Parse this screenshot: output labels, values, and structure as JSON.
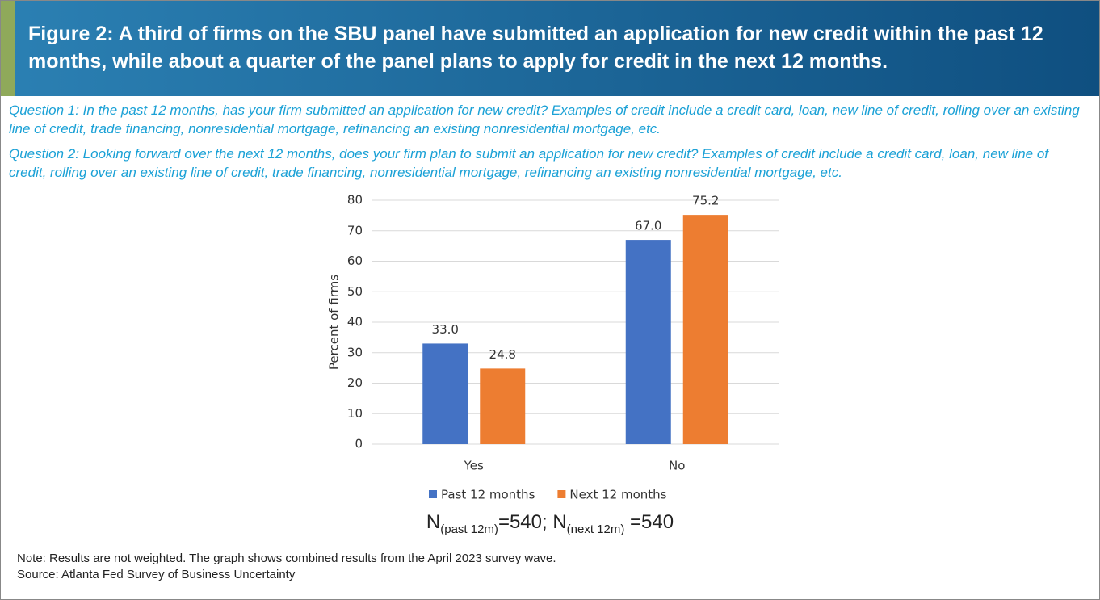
{
  "header": {
    "title": "Figure 2: A third of firms on the SBU panel have submitted an application for new credit within the past 12 months, while about a quarter of the panel plans to apply for credit in the next 12 months."
  },
  "questions": [
    "Question 1: In the past 12 months, has your firm submitted an application for new credit? Examples of credit include a credit card, loan, new line of credit, rolling over an existing line of credit, trade financing, nonresidential mortgage, refinancing an existing nonresidential mortgage, etc.",
    "Question 2: Looking forward over the next 12 months, does your firm plan to submit an application for new credit? Examples of credit include a credit card, loan, new line of credit, rolling over an existing line of credit, trade financing, nonresidential mortgage, refinancing an existing nonresidential mortgage, etc."
  ],
  "chart_data": {
    "type": "bar",
    "y_label": "Percent of firms",
    "categories": [
      "Yes",
      "No"
    ],
    "series": [
      {
        "name": "Past 12 months",
        "color": "#4472c4",
        "values": [
          33.0,
          67.0
        ],
        "value_labels": [
          "33.0",
          "67.0"
        ]
      },
      {
        "name": "Next 12 months",
        "color": "#ed7d31",
        "values": [
          24.8,
          75.2
        ],
        "value_labels": [
          "24.8",
          "75.2"
        ]
      }
    ],
    "ylim": [
      0,
      80
    ],
    "yticks": [
      0,
      10,
      20,
      30,
      40,
      50,
      60,
      70,
      80
    ],
    "grid": true,
    "legend": "bottom"
  },
  "n_note": {
    "parts": [
      "N",
      "(past 12m)",
      "=540; N",
      "(next 12m)",
      " =540"
    ]
  },
  "footer": [
    "Note: Results are not weighted. The graph shows combined results from the April 2023 survey wave.",
    "Source: Atlanta Fed Survey of Business Uncertainty"
  ]
}
